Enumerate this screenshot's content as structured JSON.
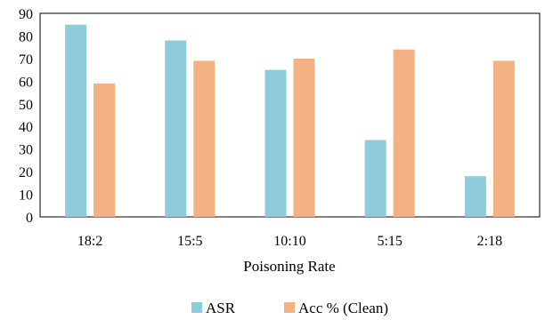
{
  "chart_data": {
    "type": "bar",
    "title": "",
    "xlabel": "Poisoning Rate",
    "ylabel": "",
    "categories": [
      "18:2",
      "15:5",
      "10:10",
      "5:15",
      "2:18"
    ],
    "ylim": [
      0,
      90
    ],
    "yticks": [
      "0",
      "10",
      "20",
      "30",
      "40",
      "50",
      "60",
      "70",
      "80",
      "90"
    ],
    "grid": false,
    "legend_position": "bottom",
    "series": [
      {
        "name": "ASR",
        "color": "#8ECCDC",
        "values": [
          85,
          78,
          65,
          34,
          18
        ]
      },
      {
        "name": "Acc % (Clean)",
        "color": "#F4B183",
        "values": [
          59,
          69,
          70,
          74,
          69
        ]
      }
    ]
  }
}
